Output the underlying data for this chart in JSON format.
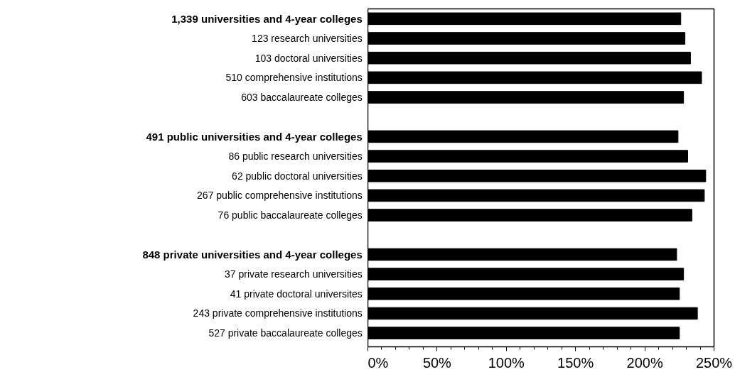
{
  "chart_data": {
    "type": "bar",
    "orientation": "horizontal",
    "categories": [
      "1,339 universities and 4-year colleges",
      "123 research universities",
      "103 doctoral universities",
      "510 comprehensive institutions",
      "603 baccalaureate colleges",
      null,
      "491 public universities and 4-year colleges",
      "86 public research universities",
      "62 public doctoral universities",
      "267 public comprehensive institutions",
      "76 public baccalaureate colleges",
      null,
      "848 private universities and 4-year colleges",
      "37 private research universities",
      "41 private doctoral universites",
      "243 private comprehensive institutions",
      "527 private baccalaureate colleges"
    ],
    "values": [
      226,
      229,
      233,
      241,
      228,
      null,
      224,
      231,
      244,
      243,
      234,
      null,
      223,
      228,
      225,
      238,
      225
    ],
    "color": "#000000",
    "xlim": [
      0,
      250
    ],
    "xticks": [
      {
        "value": 0,
        "label": "0%"
      },
      {
        "value": 50,
        "label": "50%"
      },
      {
        "value": 100,
        "label": "100%"
      },
      {
        "value": 150,
        "label": "150%"
      },
      {
        "value": 200,
        "label": "200%"
      },
      {
        "value": 250,
        "label": "250%"
      }
    ],
    "grid": false
  }
}
